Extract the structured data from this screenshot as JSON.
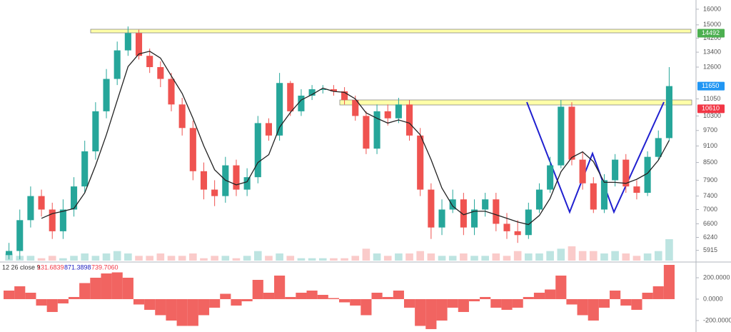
{
  "chart_data": {
    "type": "candlestick",
    "log_scale": true,
    "ylim": [
      5670,
      16620
    ],
    "yticks": [
      5915,
      6240,
      6600,
      7000,
      7400,
      7900,
      8500,
      9100,
      9700,
      10300,
      11050,
      12600,
      13400,
      14200,
      15000,
      16000
    ],
    "up_color": "#26a69a",
    "down_color": "#ef5350",
    "open": [
      5800,
      5900,
      6700,
      7400,
      7000,
      6400,
      7000,
      7700,
      8900,
      10500,
      12000,
      13500,
      14500,
      13200,
      12600,
      12000,
      10800,
      9800,
      8200,
      7600,
      7400,
      8400,
      7600,
      8000,
      10000,
      9500,
      11800,
      10500,
      11200,
      11500,
      11500,
      11400,
      11000,
      10300,
      9000,
      10500,
      10200,
      10800,
      9500,
      7600,
      6500,
      7000,
      7300,
      6500,
      7000,
      7300,
      6600,
      6400,
      6300,
      7000,
      7600,
      8400,
      10700,
      8600,
      7800,
      7000,
      7900,
      8600,
      7700,
      7500,
      8700,
      9400
    ],
    "high": [
      6100,
      7000,
      7700,
      7600,
      7200,
      7300,
      8000,
      9300,
      10900,
      12500,
      14000,
      14900,
      14700,
      13600,
      12900,
      12300,
      11100,
      10100,
      8500,
      7900,
      8700,
      8600,
      8300,
      10300,
      10200,
      12300,
      11900,
      11500,
      11700,
      11700,
      11700,
      11600,
      11200,
      10500,
      10800,
      10800,
      11100,
      11000,
      9800,
      7800,
      7300,
      7600,
      7500,
      7300,
      7500,
      7500,
      6900,
      6700,
      7200,
      7800,
      8700,
      11000,
      10900,
      8900,
      8000,
      8100,
      8800,
      8800,
      7900,
      8900,
      9700,
      12600
    ],
    "low": [
      5700,
      5700,
      6500,
      6800,
      6200,
      6200,
      6800,
      7500,
      8600,
      10200,
      11700,
      13200,
      13000,
      12300,
      11600,
      10500,
      9500,
      7900,
      7300,
      7100,
      7200,
      7400,
      7400,
      7800,
      9300,
      9300,
      10300,
      10300,
      11000,
      11300,
      11200,
      10800,
      10100,
      8800,
      8800,
      9900,
      10000,
      9300,
      7400,
      6200,
      6300,
      6900,
      6300,
      6300,
      6800,
      6400,
      6200,
      6100,
      6200,
      6900,
      7500,
      8300,
      8400,
      7600,
      6900,
      6900,
      7700,
      7500,
      7300,
      7400,
      8600,
      9300
    ],
    "close": [
      5900,
      6700,
      7400,
      7000,
      6400,
      7000,
      7700,
      8900,
      10500,
      12000,
      13500,
      14500,
      13200,
      12600,
      12000,
      10800,
      9800,
      8200,
      7600,
      7400,
      8400,
      7600,
      8000,
      10000,
      9500,
      11800,
      10500,
      11200,
      11500,
      11500,
      11400,
      11000,
      10300,
      9000,
      10500,
      10200,
      10800,
      9500,
      7600,
      6500,
      7000,
      7300,
      6500,
      7000,
      7300,
      6600,
      6400,
      6300,
      7000,
      7600,
      8400,
      10700,
      8600,
      7800,
      7000,
      7900,
      8600,
      7700,
      7500,
      8700,
      9400,
      11650
    ],
    "ma": {
      "color": "#222222",
      "values": [
        null,
        null,
        null,
        6750,
        6880,
        6950,
        7030,
        7500,
        8400,
        9530,
        10980,
        12630,
        13300,
        13450,
        13080,
        12150,
        11300,
        10200,
        9100,
        8250,
        7900,
        7750,
        7850,
        8500,
        8780,
        9830,
        10450,
        11000,
        11250,
        11550,
        11400,
        11350,
        11050,
        10430,
        10200,
        10000,
        10130,
        10000,
        9530,
        8600,
        7650,
        7100,
        6850,
        6950,
        6950,
        6850,
        6750,
        6650,
        6580,
        6830,
        7330,
        8180,
        8680,
        8880,
        8530,
        7830,
        7830,
        7800,
        7930,
        8130,
        8580,
        9310
      ]
    },
    "volume": [
      3,
      2,
      2,
      1,
      2,
      1,
      2,
      3,
      2,
      3,
      4,
      3,
      2,
      2,
      3,
      2,
      2,
      3,
      1,
      2,
      2,
      1,
      2,
      4,
      2,
      3,
      2,
      1,
      1,
      1,
      1,
      1,
      2,
      5,
      3,
      2,
      3,
      3,
      4,
      3,
      2,
      2,
      3,
      2,
      2,
      3,
      2,
      4,
      3,
      3,
      4,
      5,
      6,
      4,
      4,
      3,
      4,
      3,
      2,
      3,
      4,
      9
    ],
    "price_labels": [
      {
        "value": 14492,
        "color": "#4caf50"
      },
      {
        "value": 11650,
        "color": "#2196f3"
      },
      {
        "value": 10610,
        "color": "#f23645"
      }
    ],
    "macd": {
      "params": "12 26 close 9",
      "readouts": [
        {
          "text": "131.6839",
          "color": "#f23645"
        },
        {
          "text": "871.3898",
          "color": "#2020c0"
        },
        {
          "text": "739.7060",
          "color": "#f23645"
        }
      ],
      "color": "#ef5350",
      "ylim": [
        -307,
        340
      ],
      "yticks": [
        {
          "value": 200,
          "label": "200.0000"
        },
        {
          "value": 0,
          "label": "0.0000"
        },
        {
          "value": -200,
          "label": "-200.0000"
        }
      ],
      "values": [
        80,
        120,
        60,
        -60,
        -120,
        -40,
        20,
        150,
        200,
        240,
        250,
        200,
        -50,
        -100,
        -150,
        -200,
        -250,
        -250,
        -150,
        -80,
        50,
        -60,
        -20,
        180,
        60,
        220,
        20,
        60,
        80,
        40,
        10,
        -30,
        -60,
        -150,
        60,
        20,
        80,
        -80,
        -250,
        -280,
        -200,
        -80,
        -120,
        -20,
        20,
        -80,
        -100,
        -80,
        20,
        60,
        90,
        220,
        -50,
        -150,
        -200,
        -80,
        80,
        -60,
        -100,
        60,
        120,
        320
      ]
    }
  }
}
